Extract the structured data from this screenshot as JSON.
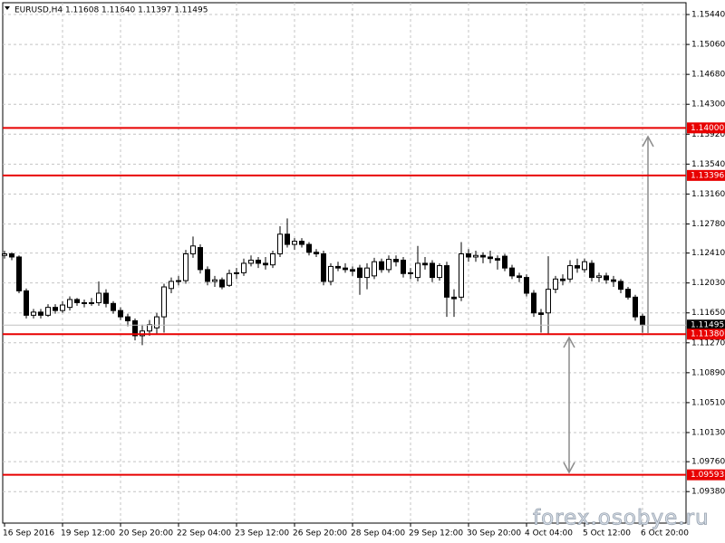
{
  "chart_data": {
    "type": "candlestick",
    "title": "EURUSD,H4  1.11608 1.11640 1.11397 1.11495",
    "categories": [
      "16 Sep 2016",
      null,
      null,
      null,
      null,
      null,
      null,
      null,
      "19 Sep 12:00",
      null,
      null,
      null,
      null,
      null,
      null,
      null,
      "20 Sep 20:00",
      null,
      null,
      null,
      null,
      null,
      null,
      null,
      "22 Sep 04:00",
      null,
      null,
      null,
      null,
      null,
      null,
      null,
      "23 Sep 12:00",
      null,
      null,
      null,
      null,
      null,
      null,
      null,
      "26 Sep 20:00",
      null,
      null,
      null,
      null,
      null,
      null,
      null,
      "28 Sep 04:00",
      null,
      null,
      null,
      null,
      null,
      null,
      null,
      "29 Sep 12:00",
      null,
      null,
      null,
      null,
      null,
      null,
      null,
      "30 Sep 20:00",
      null,
      null,
      null,
      null,
      null,
      null,
      null,
      "4 Oct 04:00",
      null,
      null,
      null,
      null,
      null,
      null,
      null,
      "5 Oct 12:00",
      null,
      null,
      null,
      null,
      null,
      null,
      null,
      "6 Oct 20:00"
    ],
    "open": [
      1.1238,
      1.124,
      1.1236,
      1.1193,
      1.1162,
      1.1166,
      1.1162,
      1.1172,
      1.1168,
      1.1172,
      1.1182,
      1.1178,
      1.1177,
      1.1178,
      1.119,
      1.1177,
      1.1168,
      1.116,
      1.1155,
      1.1136,
      1.1142,
      1.1146,
      1.116,
      1.1196,
      1.1205,
      1.1206,
      1.124,
      1.1248,
      1.122,
      1.1205,
      1.1207,
      1.12,
      1.1215,
      1.1216,
      1.1228,
      1.1232,
      1.1228,
      1.1226,
      1.124,
      1.1265,
      1.1252,
      1.1256,
      1.1252,
      1.1242,
      1.124,
      1.1205,
      1.1224,
      1.1222,
      1.122,
      1.1222,
      1.121,
      1.1212,
      1.123,
      1.122,
      1.1233,
      1.1232,
      1.1215,
      1.121,
      1.1228,
      1.1228,
      1.121,
      1.1225,
      1.1185,
      1.1185,
      1.124,
      1.1236,
      1.1238,
      1.1236,
      1.1234,
      1.1237,
      1.1222,
      1.1212,
      1.121,
      1.119,
      1.1165,
      1.1165,
      1.1195,
      1.1208,
      1.1208,
      1.1225,
      1.122,
      1.1228,
      1.121,
      1.1212,
      1.1207,
      1.1205,
      1.1195,
      1.1185,
      1.11608
    ],
    "high": [
      1.1244,
      1.1242,
      1.1238,
      1.1196,
      1.117,
      1.117,
      1.1176,
      1.1176,
      1.118,
      1.1186,
      1.1184,
      1.1182,
      1.1184,
      1.1205,
      1.1195,
      1.118,
      1.1172,
      1.1164,
      1.1158,
      1.115,
      1.1156,
      1.1165,
      1.1202,
      1.121,
      1.1212,
      1.1245,
      1.1262,
      1.1252,
      1.1224,
      1.1212,
      1.121,
      1.122,
      1.1222,
      1.1234,
      1.1238,
      1.1236,
      1.1236,
      1.1244,
      1.1275,
      1.1285,
      1.126,
      1.126,
      1.1255,
      1.1246,
      1.1244,
      1.1228,
      1.123,
      1.1228,
      1.1224,
      1.1226,
      1.1228,
      1.1235,
      1.1234,
      1.1238,
      1.1238,
      1.1236,
      1.1222,
      1.125,
      1.1236,
      1.1232,
      1.1228,
      1.123,
      1.1195,
      1.1255,
      1.1246,
      1.1244,
      1.1242,
      1.1244,
      1.1238,
      1.124,
      1.1226,
      1.1216,
      1.1214,
      1.1194,
      1.117,
      1.1237,
      1.1212,
      1.1214,
      1.1232,
      1.1234,
      1.1234,
      1.1232,
      1.1216,
      1.1216,
      1.1212,
      1.1208,
      1.1198,
      1.1188,
      1.1164
    ],
    "low": [
      1.1234,
      1.1232,
      1.119,
      1.1158,
      1.1158,
      1.1158,
      1.116,
      1.1164,
      1.1165,
      1.1168,
      1.1174,
      1.1172,
      1.1174,
      1.1174,
      1.1172,
      1.1164,
      1.1156,
      1.1148,
      1.113,
      1.1124,
      1.1136,
      1.1138,
      1.114,
      1.119,
      1.12,
      1.1202,
      1.1235,
      1.1215,
      1.12,
      1.1198,
      1.1195,
      1.1198,
      1.1208,
      1.1212,
      1.1224,
      1.1222,
      1.122,
      1.1222,
      1.1236,
      1.1248,
      1.1245,
      1.1248,
      1.1238,
      1.1236,
      1.12,
      1.12,
      1.1218,
      1.1216,
      1.1212,
      1.1188,
      1.1195,
      1.1208,
      1.1216,
      1.1216,
      1.1224,
      1.121,
      1.1208,
      1.1205,
      1.122,
      1.1204,
      1.1206,
      1.116,
      1.116,
      1.118,
      1.123,
      1.123,
      1.1228,
      1.1228,
      1.122,
      1.1218,
      1.1208,
      1.1204,
      1.1186,
      1.116,
      1.114,
      1.1138,
      1.119,
      1.12,
      1.1204,
      1.1216,
      1.1216,
      1.1205,
      1.1204,
      1.1202,
      1.1198,
      1.119,
      1.1182,
      1.1155,
      1.11397
    ],
    "close": [
      1.124,
      1.1236,
      1.1193,
      1.1162,
      1.1166,
      1.1162,
      1.1172,
      1.1168,
      1.1175,
      1.1182,
      1.1178,
      1.1177,
      1.1178,
      1.119,
      1.1177,
      1.1168,
      1.116,
      1.1155,
      1.1136,
      1.1142,
      1.115,
      1.116,
      1.1198,
      1.1205,
      1.1206,
      1.124,
      1.125,
      1.122,
      1.1205,
      1.1207,
      1.1198,
      1.1215,
      1.1216,
      1.1228,
      1.1232,
      1.1228,
      1.1226,
      1.124,
      1.1265,
      1.1252,
      1.1256,
      1.1252,
      1.1242,
      1.124,
      1.1205,
      1.1224,
      1.1222,
      1.122,
      1.1218,
      1.121,
      1.1222,
      1.123,
      1.122,
      1.1233,
      1.123,
      1.1215,
      1.1216,
      1.1228,
      1.1226,
      1.121,
      1.1225,
      1.1185,
      1.1183,
      1.124,
      1.1236,
      1.1238,
      1.1236,
      1.1234,
      1.1232,
      1.1222,
      1.1212,
      1.121,
      1.119,
      1.1165,
      1.1163,
      1.1195,
      1.1208,
      1.1206,
      1.1225,
      1.1222,
      1.123,
      1.121,
      1.1212,
      1.1207,
      1.1205,
      1.1195,
      1.1185,
      1.116,
      1.11495
    ],
    "ylim": [
      1.0898,
      1.1559
    ],
    "yticks": [
      {
        "value": 1.1544,
        "label": "1.15440"
      },
      {
        "value": 1.1506,
        "label": "1.15060"
      },
      {
        "value": 1.1468,
        "label": "1.14680"
      },
      {
        "value": 1.143,
        "label": "1.14300"
      },
      {
        "value": 1.1392,
        "label": "1.13920"
      },
      {
        "value": 1.1354,
        "label": "1.13540"
      },
      {
        "value": 1.1316,
        "label": "1.13160"
      },
      {
        "value": 1.1278,
        "label": "1.12780"
      },
      {
        "value": 1.1241,
        "label": "1.12410"
      },
      {
        "value": 1.1203,
        "label": "1.12030"
      },
      {
        "value": 1.1165,
        "label": "1.11650"
      },
      {
        "value": 1.1127,
        "label": "1.11270"
      },
      {
        "value": 1.1089,
        "label": "1.10890"
      },
      {
        "value": 1.1051,
        "label": "1.10510"
      },
      {
        "value": 1.1013,
        "label": "1.10130"
      },
      {
        "value": 1.0976,
        "label": "1.09760"
      },
      {
        "value": 1.0938,
        "label": "1.09380"
      }
    ],
    "levels": [
      {
        "value": 1.14,
        "label": "1.14000"
      },
      {
        "value": 1.13396,
        "label": "1.13396"
      },
      {
        "value": 1.1138,
        "label": "1.11380"
      },
      {
        "value": 1.09593,
        "label": "1.09593"
      }
    ],
    "level_color": "#e80000",
    "last_price": {
      "value": 1.11495,
      "label": "1.11495"
    },
    "grid": true,
    "watermark": "forex.osobye.ru"
  }
}
